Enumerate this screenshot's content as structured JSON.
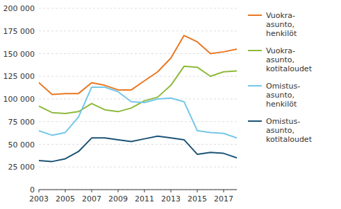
{
  "chart_data": {
    "type": "line",
    "x": [
      2003,
      2004,
      2005,
      2006,
      2007,
      2008,
      2009,
      2010,
      2011,
      2012,
      2013,
      2014,
      2015,
      2016,
      2017,
      2018
    ],
    "series": [
      {
        "name": "Vuokra-\nasunto,\nhenkilöt",
        "color": "#E87722",
        "values": [
          118000,
          105000,
          106000,
          106000,
          118000,
          115000,
          110000,
          110000,
          120000,
          130000,
          145000,
          170000,
          163000,
          150000,
          152000,
          155000
        ]
      },
      {
        "name": "Vuokra-\nasunto,\nkotitaloudet",
        "color": "#8DB93C",
        "values": [
          92000,
          85000,
          84000,
          86000,
          95000,
          88000,
          86000,
          90000,
          98000,
          102000,
          115000,
          136000,
          135000,
          125000,
          130000,
          131000
        ]
      },
      {
        "name": "Omistus-\nasunto,\nhenkilöt",
        "color": "#74C6E8",
        "values": [
          65000,
          60000,
          63000,
          80000,
          113000,
          113000,
          108000,
          97000,
          96000,
          100000,
          101000,
          97000,
          65000,
          63000,
          62000,
          57000
        ]
      },
      {
        "name": "Omistus-\nasunto,\nkotitaloudet",
        "color": "#1A5276",
        "values": [
          32000,
          31000,
          34000,
          42000,
          57000,
          57000,
          55000,
          53000,
          56000,
          59000,
          57000,
          55000,
          39000,
          41000,
          40000,
          35000
        ]
      }
    ],
    "xlim": [
      2003,
      2018
    ],
    "xticks": [
      2003,
      2005,
      2007,
      2009,
      2011,
      2013,
      2015,
      2017
    ],
    "ylim": [
      0,
      200000
    ],
    "yticks": [
      0,
      {
        "value": 25000,
        "label": "25 000"
      },
      {
        "value": 50000,
        "label": "50 000"
      },
      {
        "value": 75000,
        "label": "75 000"
      },
      {
        "value": 100000,
        "label": "100 000"
      },
      {
        "value": 125000,
        "label": "125 000"
      },
      {
        "value": 150000,
        "label": "150 000"
      },
      {
        "value": 175000,
        "label": "175 000"
      },
      {
        "value": 200000,
        "label": "200 000"
      }
    ],
    "grid": true,
    "legend": "right"
  }
}
